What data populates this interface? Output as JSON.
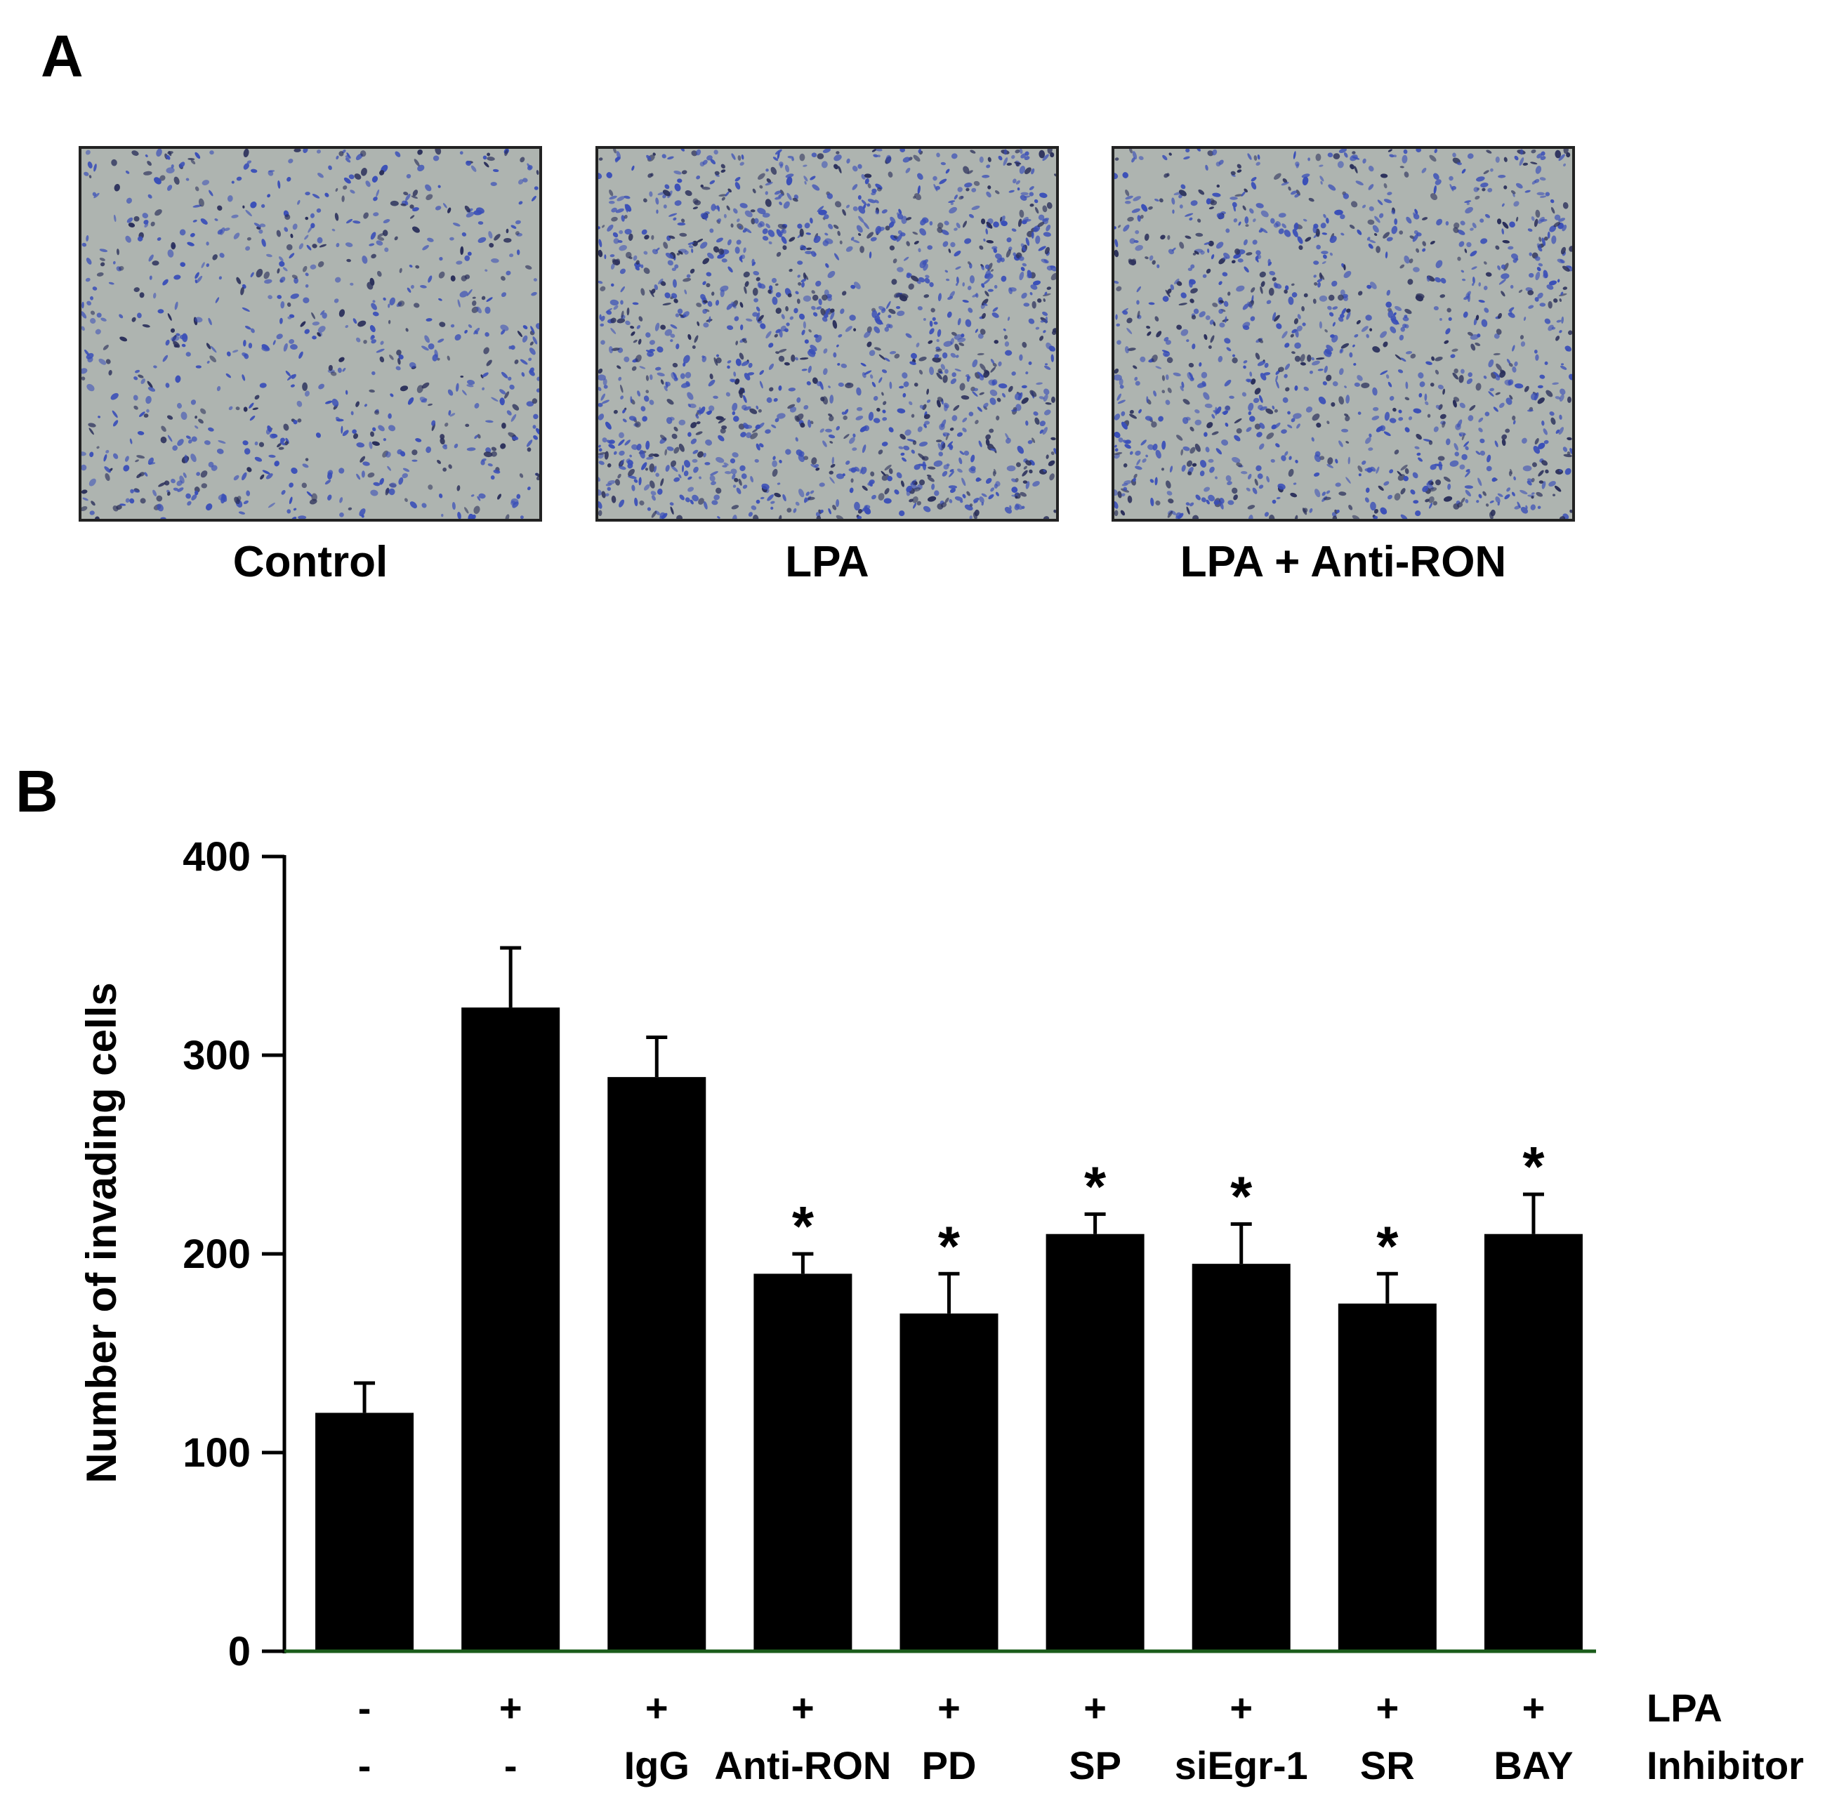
{
  "panel_a": {
    "letter": "A",
    "images": [
      {
        "caption": "Control",
        "density": 0.55
      },
      {
        "caption": "LPA",
        "density": 1.0
      },
      {
        "caption": "LPA + Anti-RON",
        "density": 0.8
      }
    ],
    "stain_color": "#3a4fb8",
    "background_color": "#aeb4b0"
  },
  "panel_b": {
    "letter": "B"
  },
  "chart_data": {
    "type": "bar",
    "ylabel": "Number of invading cells",
    "ylim": [
      0,
      400
    ],
    "yticks": [
      0,
      100,
      200,
      300,
      400
    ],
    "bar_color": "#000000",
    "axis_color": "#1a5c1a",
    "values": [
      120,
      324,
      289,
      190,
      170,
      210,
      195,
      175,
      210
    ],
    "errors": [
      15,
      30,
      20,
      10,
      20,
      10,
      20,
      15,
      20
    ],
    "significance": [
      "",
      "",
      "",
      "*",
      "*",
      "*",
      "*",
      "*",
      "*"
    ],
    "condition_rows": [
      {
        "label": "LPA",
        "values": [
          "-",
          "+",
          "+",
          "+",
          "+",
          "+",
          "+",
          "+",
          "+"
        ]
      },
      {
        "label": "Inhibitor",
        "values": [
          "-",
          "-",
          "IgG",
          "Anti-RON",
          "PD",
          "SP",
          "siEgr-1",
          "SR",
          "BAY"
        ]
      }
    ]
  }
}
